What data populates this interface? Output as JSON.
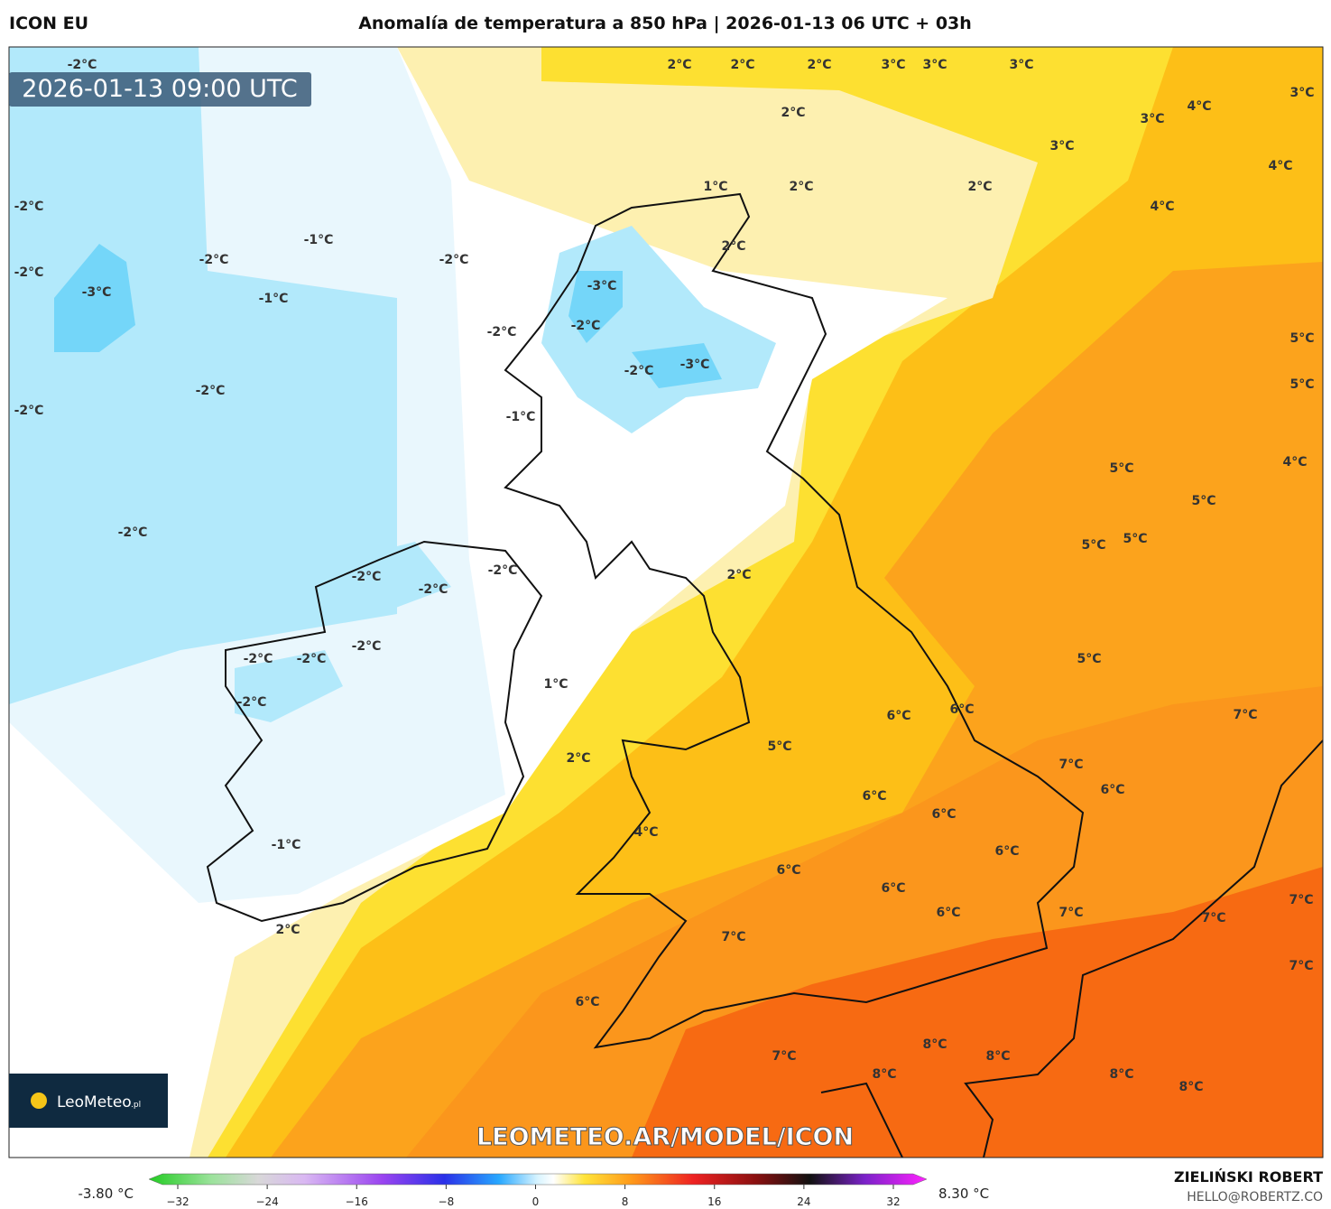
{
  "header": {
    "model": "ICON EU",
    "title": "Anomalía de temperatura a 850 hPa | 2026-01-13 06 UTC + 03h"
  },
  "timestamp": "2026-01-13 09:00 UTC",
  "map_labels": [
    "-2°C",
    "2°C",
    "2°C",
    "2°C",
    "3°C",
    "3°C",
    "3°C",
    "3°C",
    "2°C",
    "3°C",
    "4°C",
    "3°C",
    "4°C",
    "1°C",
    "2°C",
    "2°C",
    "-2°C",
    "4°C",
    "-1°C",
    "2°C",
    "-2°C",
    "-2°C",
    "-2°C",
    "-3°C",
    "-1°C",
    "-3°C",
    "-2°C",
    "-2°C",
    "5°C",
    "-3°C",
    "-2°C",
    "5°C",
    "-2°C",
    "-2°C",
    "-1°C",
    "5°C",
    "4°C",
    "5°C",
    "-2°C",
    "5°C",
    "5°C",
    "-2°C",
    "-2°C",
    "2°C",
    "-2°C",
    "-2°C",
    "-2°C",
    "-2°C",
    "5°C",
    "1°C",
    "-2°C",
    "6°C",
    "6°C",
    "7°C",
    "5°C",
    "2°C",
    "7°C",
    "6°C",
    "6°C",
    "6°C",
    "4°C",
    "-1°C",
    "6°C",
    "6°C",
    "6°C",
    "7°C",
    "2°C",
    "6°C",
    "7°C",
    "7°C",
    "7°C",
    "7°C",
    "6°C",
    "8°C",
    "8°C",
    "7°C",
    "8°C",
    "8°C",
    "8°C"
  ],
  "watermark": "LEOMETEO.AR/MODEL/ICON",
  "logo": {
    "name": "LeoMeteo",
    "suffix": ".pl"
  },
  "colorbar": {
    "min_label": "-3.80 °C",
    "max_label": "8.30 °C",
    "ticks": [
      "−32",
      "−24",
      "−16",
      "−8",
      "0",
      "8",
      "16",
      "24",
      "32"
    ]
  },
  "credits": {
    "author": "ZIELIŃSKI ROBERT",
    "contact": "HELLO@ROBERTZ.CO"
  }
}
